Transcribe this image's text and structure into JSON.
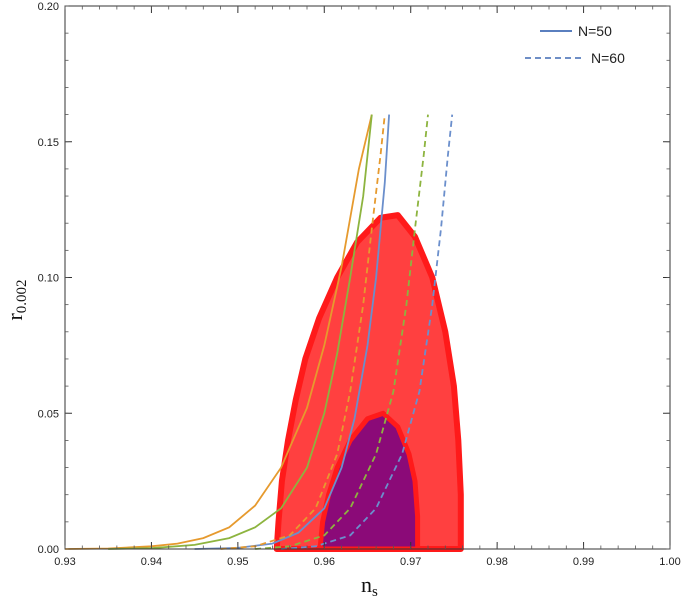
{
  "colors": {
    "n50_line": "#5a7fbf",
    "n60_line": "#5a7fbf",
    "orange": "#e69a2e",
    "green": "#8db43f",
    "blue": "#6b8fcc",
    "contour_outer_fill": "#ff4040",
    "contour_outer_edge": "#ff1a1a",
    "contour_inner_fill": "#8b0a78",
    "contour_inner_edge": "#ff1a1a"
  },
  "chart_data": {
    "type": "line",
    "xlabel_main": "n",
    "xlabel_sub": "s",
    "ylabel_main": "r",
    "ylabel_sub": "0.002",
    "xlim": [
      0.93,
      1.0
    ],
    "ylim": [
      0.0,
      0.2
    ],
    "x_ticks": [
      "0.93",
      "0.94",
      "0.95",
      "0.96",
      "0.97",
      "0.98",
      "0.99",
      "1.00"
    ],
    "y_ticks": [
      "0.00",
      "0.05",
      "0.10",
      "0.15",
      "0.20"
    ],
    "legend": [
      {
        "label": "N=50",
        "style": "solid"
      },
      {
        "label": "N=60",
        "style": "dashed"
      }
    ],
    "contours": [
      {
        "level": "outer",
        "points": [
          [
            0.9545,
            0.0
          ],
          [
            0.9547,
            0.01
          ],
          [
            0.9551,
            0.025
          ],
          [
            0.9558,
            0.04
          ],
          [
            0.9567,
            0.055
          ],
          [
            0.9578,
            0.07
          ],
          [
            0.9594,
            0.085
          ],
          [
            0.9615,
            0.1
          ],
          [
            0.9638,
            0.113
          ],
          [
            0.9665,
            0.122
          ],
          [
            0.9685,
            0.123
          ],
          [
            0.9705,
            0.115
          ],
          [
            0.9725,
            0.1
          ],
          [
            0.974,
            0.08
          ],
          [
            0.975,
            0.06
          ],
          [
            0.9755,
            0.04
          ],
          [
            0.9758,
            0.02
          ],
          [
            0.9758,
            0.0
          ]
        ]
      },
      {
        "level": "inner",
        "points": [
          [
            0.9595,
            0.0
          ],
          [
            0.9598,
            0.01
          ],
          [
            0.9605,
            0.02
          ],
          [
            0.9615,
            0.03
          ],
          [
            0.963,
            0.04
          ],
          [
            0.965,
            0.048
          ],
          [
            0.9668,
            0.05
          ],
          [
            0.9685,
            0.045
          ],
          [
            0.9698,
            0.035
          ],
          [
            0.9705,
            0.025
          ],
          [
            0.9708,
            0.012
          ],
          [
            0.9708,
            0.0
          ]
        ]
      }
    ],
    "series": [
      {
        "name": "N=50",
        "color_key": "orange",
        "style": "solid",
        "x": [
          0.93,
          0.935,
          0.94,
          0.943,
          0.946,
          0.949,
          0.952,
          0.955,
          0.958,
          0.96,
          0.962,
          0.964,
          0.9655
        ],
        "y": [
          0.0,
          0.0002,
          0.001,
          0.002,
          0.004,
          0.008,
          0.016,
          0.03,
          0.052,
          0.075,
          0.104,
          0.14,
          0.16
        ]
      },
      {
        "name": "N=50",
        "color_key": "green",
        "style": "solid",
        "x": [
          0.935,
          0.94,
          0.945,
          0.949,
          0.952,
          0.955,
          0.958,
          0.96,
          0.9615,
          0.963,
          0.9645,
          0.9655
        ],
        "y": [
          0.0,
          0.0003,
          0.0015,
          0.004,
          0.008,
          0.015,
          0.03,
          0.05,
          0.072,
          0.1,
          0.13,
          0.16
        ]
      },
      {
        "name": "N=50",
        "color_key": "blue",
        "style": "solid",
        "x": [
          0.945,
          0.95,
          0.954,
          0.957,
          0.96,
          0.962,
          0.9635,
          0.965,
          0.966,
          0.967,
          0.9675
        ],
        "y": [
          0.0,
          0.0004,
          0.002,
          0.006,
          0.015,
          0.03,
          0.048,
          0.075,
          0.1,
          0.135,
          0.16
        ]
      },
      {
        "name": "N=60",
        "color_key": "orange",
        "style": "dashed",
        "x": [
          0.948,
          0.952,
          0.956,
          0.959,
          0.9615,
          0.963,
          0.9645,
          0.9655,
          0.9665,
          0.967
        ],
        "y": [
          0.0,
          0.001,
          0.005,
          0.015,
          0.035,
          0.058,
          0.09,
          0.118,
          0.145,
          0.16
        ]
      },
      {
        "name": "N=60",
        "color_key": "green",
        "style": "dashed",
        "x": [
          0.952,
          0.956,
          0.96,
          0.963,
          0.966,
          0.968,
          0.9695,
          0.9705,
          0.9715,
          0.972
        ],
        "y": [
          0.0,
          0.001,
          0.005,
          0.015,
          0.035,
          0.058,
          0.09,
          0.118,
          0.145,
          0.16
        ]
      },
      {
        "name": "N=60",
        "color_key": "blue",
        "style": "dashed",
        "x": [
          0.955,
          0.959,
          0.963,
          0.966,
          0.969,
          0.971,
          0.9725,
          0.9735,
          0.9743,
          0.9748
        ],
        "y": [
          0.0,
          0.001,
          0.005,
          0.015,
          0.035,
          0.058,
          0.09,
          0.118,
          0.145,
          0.16
        ]
      }
    ]
  }
}
